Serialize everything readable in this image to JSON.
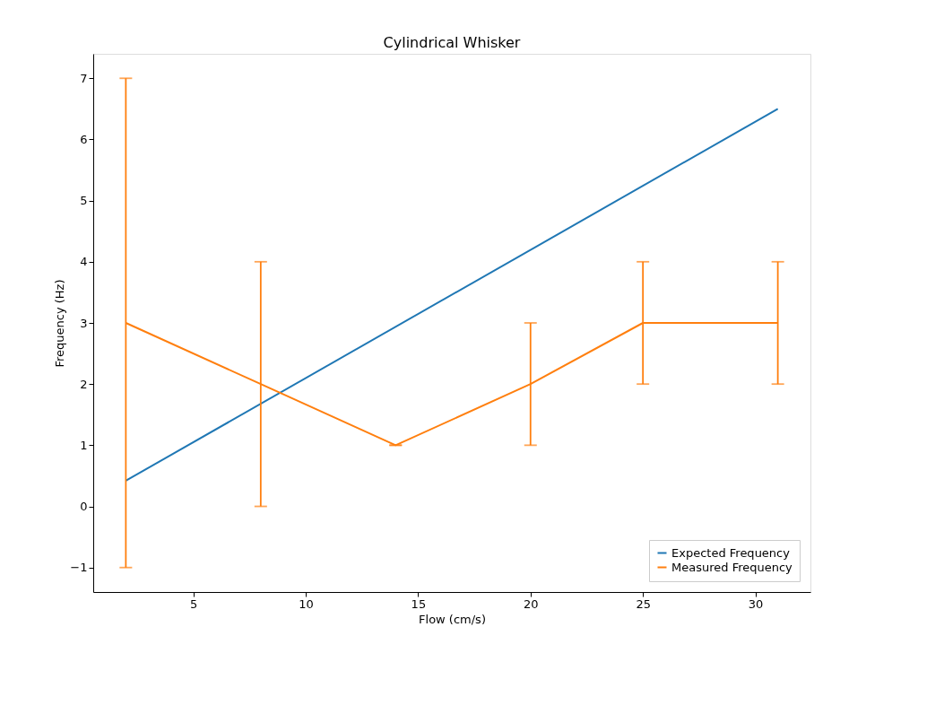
{
  "chart_data": {
    "type": "line",
    "title": "Cylindrical Whisker",
    "xlabel": "Flow (cm/s)",
    "ylabel": "Frequency (Hz)",
    "series": [
      {
        "name": "Expected Frequency",
        "color": "#1f77b4",
        "x": [
          2,
          31
        ],
        "values": [
          0.42,
          6.5
        ]
      },
      {
        "name": "Measured Frequency",
        "color": "#ff7f0e",
        "x": [
          2,
          8,
          14,
          20,
          25,
          31
        ],
        "values": [
          3,
          2,
          1,
          2,
          3,
          3
        ],
        "errors": [
          4,
          2,
          0,
          1,
          1,
          1
        ]
      }
    ],
    "xlim": [
      0.55,
      32.45
    ],
    "ylim": [
      -1.4,
      7.4
    ],
    "xticks": [
      5,
      10,
      15,
      20,
      25,
      30
    ],
    "yticks": [
      {
        "value": -1,
        "label": "−1"
      },
      0,
      1,
      2,
      3,
      4,
      5,
      6,
      7
    ],
    "legend": "bottom right",
    "grid": false
  }
}
